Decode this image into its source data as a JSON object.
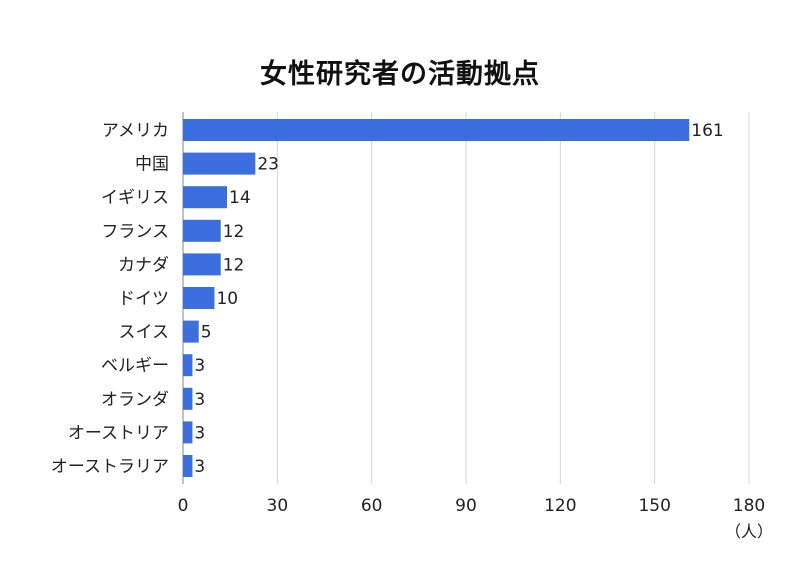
{
  "chart_data": {
    "type": "bar",
    "orientation": "horizontal",
    "title": "女性研究者の活動拠点",
    "categories": [
      "アメリカ",
      "中国",
      "イギリス",
      "フランス",
      "カナダ",
      "ドイツ",
      "スイス",
      "ベルギー",
      "オランダ",
      "オーストリア",
      "オーストラリア"
    ],
    "values": [
      161,
      23,
      14,
      12,
      12,
      10,
      5,
      3,
      3,
      3,
      3
    ],
    "xlim": [
      0,
      180
    ],
    "xticks": [
      0,
      30,
      60,
      90,
      120,
      150,
      180
    ],
    "xunit": "（人）",
    "grid": true,
    "bar_color": "#3b6fe0"
  }
}
